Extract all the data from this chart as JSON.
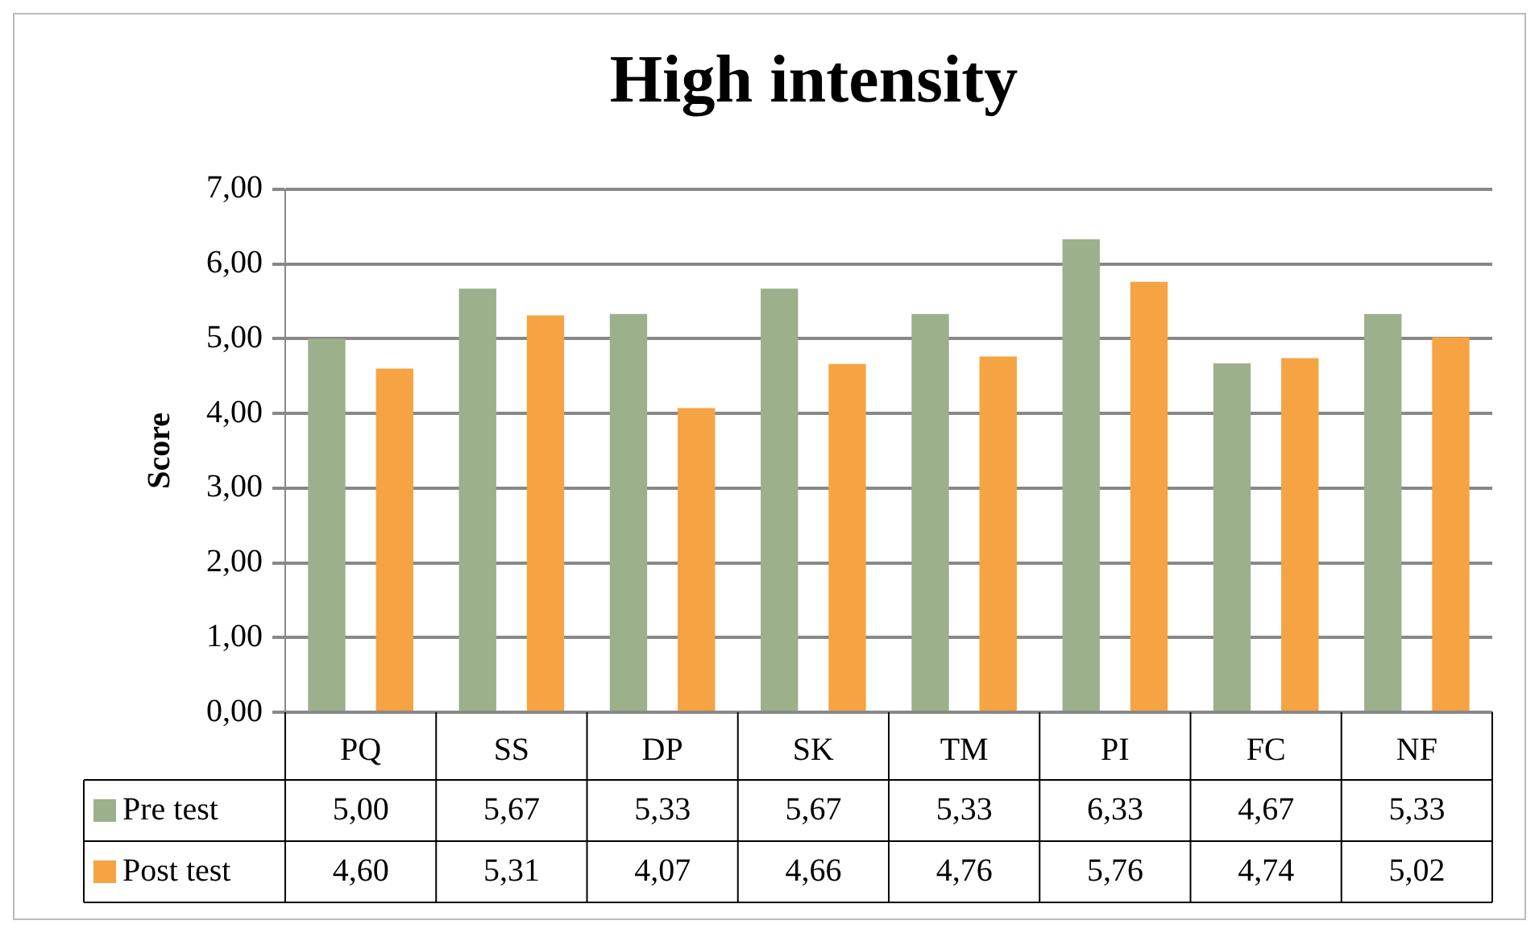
{
  "chart_data": {
    "type": "bar",
    "title": "High intensity",
    "ylabel": "Score",
    "categories": [
      "PQ",
      "SS",
      "DP",
      "SK",
      "TM",
      "PI",
      "FC",
      "NF"
    ],
    "series": [
      {
        "name": "Pre test",
        "color": "#9bb08b",
        "values": [
          5.0,
          5.67,
          5.33,
          5.67,
          5.33,
          6.33,
          4.67,
          5.33
        ],
        "value_labels": [
          "5,00",
          "5,67",
          "5,33",
          "5,67",
          "5,33",
          "6,33",
          "4,67",
          "5,33"
        ]
      },
      {
        "name": "Post test",
        "color": "#f5a343",
        "values": [
          4.6,
          5.31,
          4.07,
          4.66,
          4.76,
          5.76,
          4.74,
          5.02
        ],
        "value_labels": [
          "4,60",
          "5,31",
          "4,07",
          "4,66",
          "4,76",
          "5,76",
          "4,74",
          "5,02"
        ]
      }
    ],
    "ylim": [
      0,
      7
    ],
    "yticks": [
      {
        "value": 0,
        "label": "0,00"
      },
      {
        "value": 1,
        "label": "1,00"
      },
      {
        "value": 2,
        "label": "2,00"
      },
      {
        "value": 3,
        "label": "3,00"
      },
      {
        "value": 4,
        "label": "4,00"
      },
      {
        "value": 5,
        "label": "5,00"
      },
      {
        "value": 6,
        "label": "6,00"
      },
      {
        "value": 7,
        "label": "7,00"
      }
    ],
    "grid": "y",
    "legend": "bottom"
  }
}
